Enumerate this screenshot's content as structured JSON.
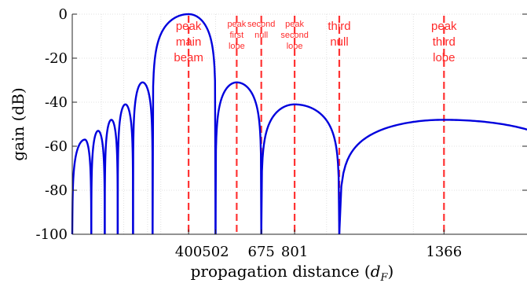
{
  "chart_data": {
    "type": "line",
    "xlabel": "propagation distance (",
    "xlabel_var": "d",
    "xlabel_sub": "F",
    "xlabel_close": ")",
    "ylabel": "gain (dB)",
    "ylim": [
      -100,
      0
    ],
    "yticks": [
      0,
      -20,
      -40,
      -60,
      -80,
      -100
    ],
    "ytick_labels": [
      "0",
      "-20",
      "-40",
      "-60",
      "-80",
      "-100"
    ],
    "xlim": [
      -40,
      1680
    ],
    "xticks": [
      400,
      502,
      675,
      801,
      1366
    ],
    "xtick_labels": [
      "400",
      "502",
      "675",
      "801",
      "1366"
    ],
    "minor_grid_x": [
      70,
      155,
      245,
      295,
      922,
      1250
    ],
    "grid": true,
    "series": [
      {
        "name": "",
        "color": "#0000dd",
        "lobes": [
          {
            "start": -40,
            "end": 32,
            "peak": 8,
            "peak_db": -57
          },
          {
            "start": 32,
            "end": 83,
            "peak": 58,
            "peak_db": -53
          },
          {
            "start": 83,
            "end": 132,
            "peak": 108,
            "peak_db": -48
          },
          {
            "start": 132,
            "end": 190,
            "peak": 161,
            "peak_db": -41
          },
          {
            "start": 190,
            "end": 264,
            "peak": 226,
            "peak_db": -31
          },
          {
            "start": 264,
            "end": 502,
            "peak": 400,
            "peak_db": 0
          },
          {
            "start": 502,
            "end": 675,
            "peak": 582,
            "peak_db": -31
          },
          {
            "start": 675,
            "end": 970,
            "peak": 801,
            "peak_db": -41
          },
          {
            "start": 970,
            "end": 1900,
            "peak": 1366,
            "peak_db": -48
          }
        ]
      }
    ],
    "markers": [
      {
        "x": 400,
        "color": "#ff3333"
      },
      {
        "x": 582,
        "color": "#ff3333"
      },
      {
        "x": 675,
        "color": "#ff3333"
      },
      {
        "x": 801,
        "color": "#ff3333"
      },
      {
        "x": 970,
        "color": "#ff3333"
      },
      {
        "x": 1366,
        "color": "#ff3333"
      }
    ],
    "annotations": [
      {
        "x": 400,
        "lines": [
          "peak",
          "main",
          "beam"
        ],
        "size": "large"
      },
      {
        "x": 582,
        "lines": [
          "peak",
          "first",
          "lobe"
        ],
        "size": "small"
      },
      {
        "x": 675,
        "lines": [
          "second",
          "null"
        ],
        "size": "small"
      },
      {
        "x": 801,
        "lines": [
          "peak",
          "second",
          "lobe"
        ],
        "size": "small"
      },
      {
        "x": 970,
        "lines": [
          "third",
          "null"
        ],
        "size": "large"
      },
      {
        "x": 1366,
        "lines": [
          "peak",
          "third",
          "lobe"
        ],
        "size": "large"
      }
    ]
  }
}
